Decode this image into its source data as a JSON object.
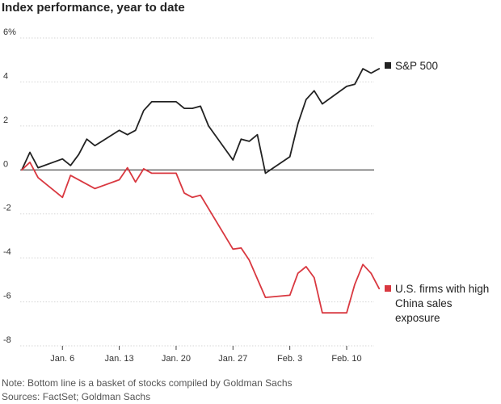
{
  "title": "Index performance, year to date",
  "notes": {
    "note": "Note: Bottom line is a basket of stocks compiled by Goldman Sachs",
    "sources": "Sources: FactSet; Goldman Sachs"
  },
  "chart_data": {
    "type": "line",
    "title": "Index performance, year to date",
    "xlabel": "",
    "ylabel": "",
    "ylim": [
      -8,
      6
    ],
    "y_ticks": [
      6,
      4,
      2,
      0,
      -2,
      -4,
      -6,
      -8
    ],
    "y_tick_labels": [
      "6%",
      "4",
      "2",
      "0",
      "-2",
      "-4",
      "-6",
      "-8"
    ],
    "x_range": [
      "2025-01-01",
      "2025-02-14"
    ],
    "x_ticks": [
      "2025-01-06",
      "2025-01-13",
      "2025-01-20",
      "2025-01-27",
      "2025-02-03",
      "2025-02-10"
    ],
    "x_tick_labels": [
      "Jan. 6",
      "Jan. 13",
      "Jan. 20",
      "Jan. 27",
      "Feb. 3",
      "Feb. 10"
    ],
    "grid": true,
    "legend": "right-inline",
    "series": [
      {
        "name": "S&P 500",
        "color": "#222222",
        "points": [
          [
            "2025-01-01",
            0.0
          ],
          [
            "2025-01-02",
            0.8
          ],
          [
            "2025-01-03",
            0.1
          ],
          [
            "2025-01-06",
            0.5
          ],
          [
            "2025-01-07",
            0.2
          ],
          [
            "2025-01-08",
            0.7
          ],
          [
            "2025-01-09",
            1.4
          ],
          [
            "2025-01-10",
            1.1
          ],
          [
            "2025-01-13",
            1.8
          ],
          [
            "2025-01-14",
            1.6
          ],
          [
            "2025-01-15",
            1.8
          ],
          [
            "2025-01-16",
            2.7
          ],
          [
            "2025-01-17",
            3.1
          ],
          [
            "2025-01-20",
            3.1
          ],
          [
            "2025-01-21",
            2.8
          ],
          [
            "2025-01-22",
            2.8
          ],
          [
            "2025-01-23",
            2.9
          ],
          [
            "2025-01-24",
            2.0
          ],
          [
            "2025-01-27",
            0.45
          ],
          [
            "2025-01-28",
            1.4
          ],
          [
            "2025-01-29",
            1.3
          ],
          [
            "2025-01-30",
            1.6
          ],
          [
            "2025-01-31",
            -0.15
          ],
          [
            "2025-02-03",
            0.6
          ],
          [
            "2025-02-04",
            2.1
          ],
          [
            "2025-02-05",
            3.2
          ],
          [
            "2025-02-06",
            3.6
          ],
          [
            "2025-02-07",
            3.0
          ],
          [
            "2025-02-10",
            3.8
          ],
          [
            "2025-02-11",
            3.9
          ],
          [
            "2025-02-12",
            4.6
          ],
          [
            "2025-02-13",
            4.4
          ],
          [
            "2025-02-14",
            4.6
          ]
        ]
      },
      {
        "name": "U.S. firms with high China sales exposure",
        "color": "#d93840",
        "points": [
          [
            "2025-01-01",
            0.0
          ],
          [
            "2025-01-02",
            0.35
          ],
          [
            "2025-01-03",
            -0.35
          ],
          [
            "2025-01-06",
            -1.25
          ],
          [
            "2025-01-07",
            -0.25
          ],
          [
            "2025-01-10",
            -0.85
          ],
          [
            "2025-01-13",
            -0.45
          ],
          [
            "2025-01-14",
            0.1
          ],
          [
            "2025-01-15",
            -0.55
          ],
          [
            "2025-01-16",
            0.05
          ],
          [
            "2025-01-17",
            -0.15
          ],
          [
            "2025-01-20",
            -0.15
          ],
          [
            "2025-01-21",
            -1.05
          ],
          [
            "2025-01-22",
            -1.25
          ],
          [
            "2025-01-23",
            -1.15
          ],
          [
            "2025-01-27",
            -3.6
          ],
          [
            "2025-01-28",
            -3.55
          ],
          [
            "2025-01-29",
            -4.1
          ],
          [
            "2025-01-31",
            -5.8
          ],
          [
            "2025-02-03",
            -5.7
          ],
          [
            "2025-02-04",
            -4.7
          ],
          [
            "2025-02-05",
            -4.4
          ],
          [
            "2025-02-06",
            -4.9
          ],
          [
            "2025-02-07",
            -6.5
          ],
          [
            "2025-02-10",
            -6.5
          ],
          [
            "2025-02-11",
            -5.2
          ],
          [
            "2025-02-12",
            -4.3
          ],
          [
            "2025-02-13",
            -4.7
          ],
          [
            "2025-02-14",
            -5.4
          ]
        ]
      }
    ],
    "legend_labels": {
      "sp500": "S&P 500",
      "china_lines": [
        "U.S. firms with high",
        "China sales",
        "exposure"
      ]
    }
  }
}
